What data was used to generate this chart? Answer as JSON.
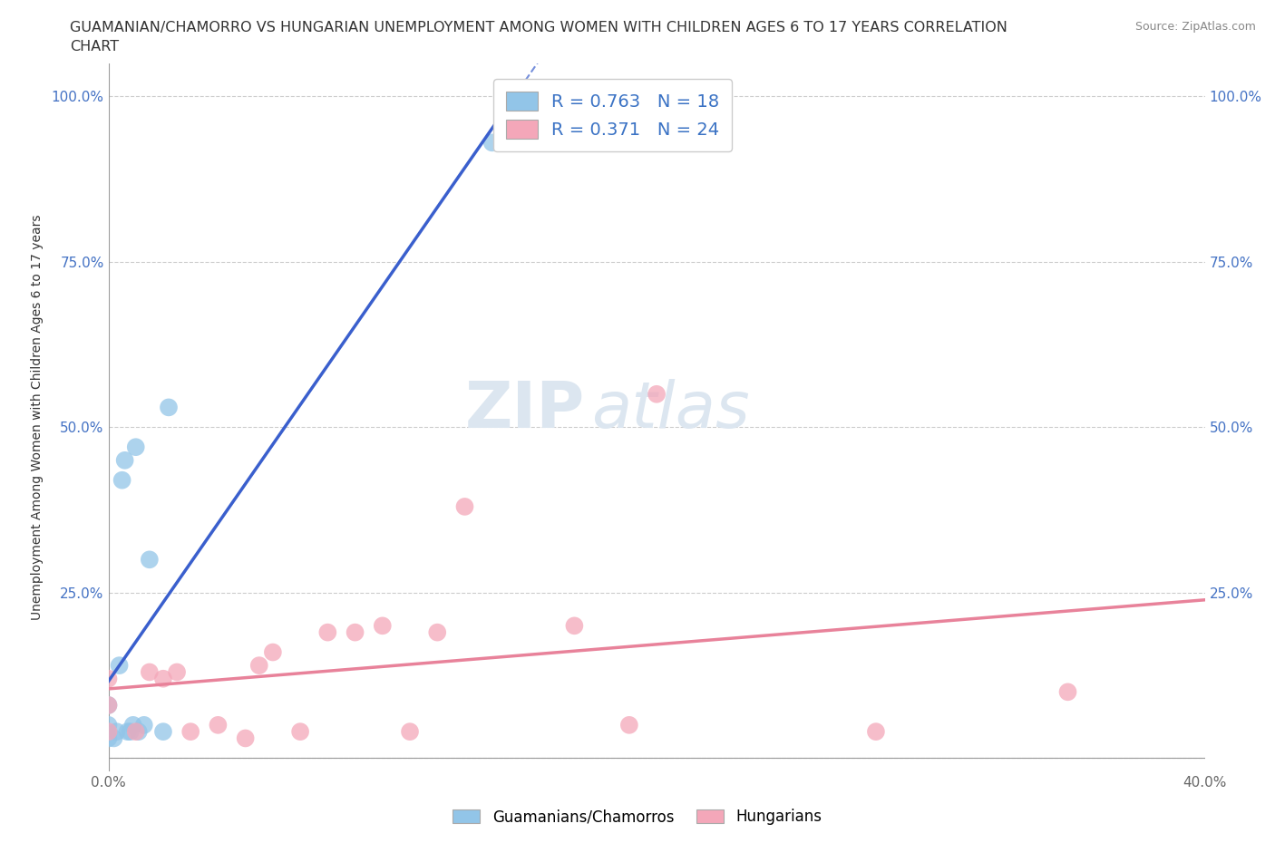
{
  "title_line1": "GUAMANIAN/CHAMORRO VS HUNGARIAN UNEMPLOYMENT AMONG WOMEN WITH CHILDREN AGES 6 TO 17 YEARS CORRELATION",
  "title_line2": "CHART",
  "source": "Source: ZipAtlas.com",
  "ylabel": "Unemployment Among Women with Children Ages 6 to 17 years",
  "xlim": [
    0.0,
    0.4
  ],
  "ylim": [
    -0.02,
    1.05
  ],
  "guamanian_color": "#92c5e8",
  "hungarian_color": "#f4a7b9",
  "guamanian_R": 0.763,
  "guamanian_N": 18,
  "hungarian_R": 0.371,
  "hungarian_N": 24,
  "guamanian_points_x": [
    0.0,
    0.0,
    0.0,
    0.002,
    0.003,
    0.004,
    0.005,
    0.006,
    0.007,
    0.008,
    0.009,
    0.01,
    0.011,
    0.013,
    0.015,
    0.02,
    0.022,
    0.14
  ],
  "guamanian_points_y": [
    0.03,
    0.05,
    0.08,
    0.03,
    0.04,
    0.14,
    0.42,
    0.45,
    0.04,
    0.04,
    0.05,
    0.47,
    0.04,
    0.05,
    0.3,
    0.04,
    0.53,
    0.93
  ],
  "hungarian_points_x": [
    0.0,
    0.0,
    0.0,
    0.01,
    0.015,
    0.02,
    0.025,
    0.03,
    0.04,
    0.05,
    0.055,
    0.06,
    0.07,
    0.08,
    0.09,
    0.1,
    0.11,
    0.12,
    0.13,
    0.17,
    0.19,
    0.2,
    0.28,
    0.35
  ],
  "hungarian_points_y": [
    0.04,
    0.08,
    0.12,
    0.04,
    0.13,
    0.12,
    0.13,
    0.04,
    0.05,
    0.03,
    0.14,
    0.16,
    0.04,
    0.19,
    0.19,
    0.2,
    0.04,
    0.19,
    0.38,
    0.2,
    0.05,
    0.55,
    0.04,
    0.1
  ],
  "background_color": "#ffffff",
  "watermark_text": "ZIP",
  "watermark_text2": "atlas",
  "grid_color": "#cccccc",
  "trendline_blue_color": "#3a5fcd",
  "trendline_pink_color": "#e8829a",
  "legend_R_color": "#3a72c4",
  "watermark_color": "#dce6f0"
}
